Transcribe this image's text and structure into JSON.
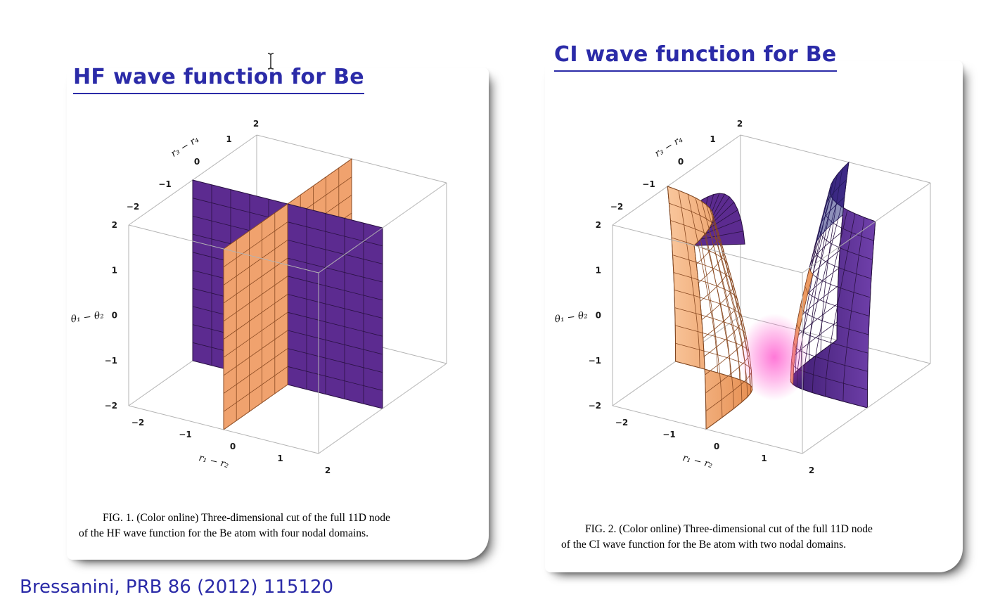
{
  "slide": {
    "background": "#ffffff",
    "accent_color": "#2b2ba8",
    "citation": "Bressanini, PRB 86 (2012) 115120"
  },
  "fig1": {
    "title": "HF wave function for Be",
    "caption_line1": "FIG. 1. (Color online) Three-dimensional cut of the full 11D node",
    "caption_line2": "of the HF wave function for the Be atom with four nodal domains.",
    "axes": {
      "top_axis_label": "r₃ − r₄",
      "left_axis_label": "θ₁ − θ₂",
      "bottom_axis_label": "r₁ − r₂",
      "top_ticks": [
        "2",
        "1",
        "0",
        "−1",
        "−2"
      ],
      "left_ticks": [
        "2",
        "1",
        "0",
        "−1",
        "−2"
      ],
      "bottom_ticks": [
        "−2",
        "−1",
        "0",
        "1",
        "2"
      ]
    },
    "colors": {
      "surface_front": "#f0a26e",
      "surface_back": "#5c2b90",
      "mesh_front": "#8a4a22",
      "mesh_back": "#2a1243",
      "box_edge": "#b3b3b3"
    }
  },
  "fig2": {
    "title": "CI wave function for Be",
    "caption_line1": "FIG. 2. (Color online) Three-dimensional cut of the full 11D node",
    "caption_line2": "of the CI wave function for the Be atom with two nodal domains.",
    "axes": {
      "top_axis_label": "r₃ − r₄",
      "left_axis_label": "θ₁ − θ₂",
      "bottom_axis_label": "r₁ − r₂",
      "top_ticks": [
        "2",
        "1",
        "0",
        "−1",
        "−2"
      ],
      "left_ticks": [
        "2",
        "1",
        "0",
        "−1",
        "−2"
      ],
      "bottom_ticks": [
        "−2",
        "−1",
        "0",
        "1",
        "2"
      ]
    },
    "colors": {
      "surface_front": "#f0a26e",
      "surface_back": "#5c2b90",
      "mesh_front": "#8a4a22",
      "mesh_back": "#2a1243",
      "glow": "#ff4ecb",
      "navy_shade": "#1d2176",
      "box_edge": "#b3b3b3"
    }
  }
}
